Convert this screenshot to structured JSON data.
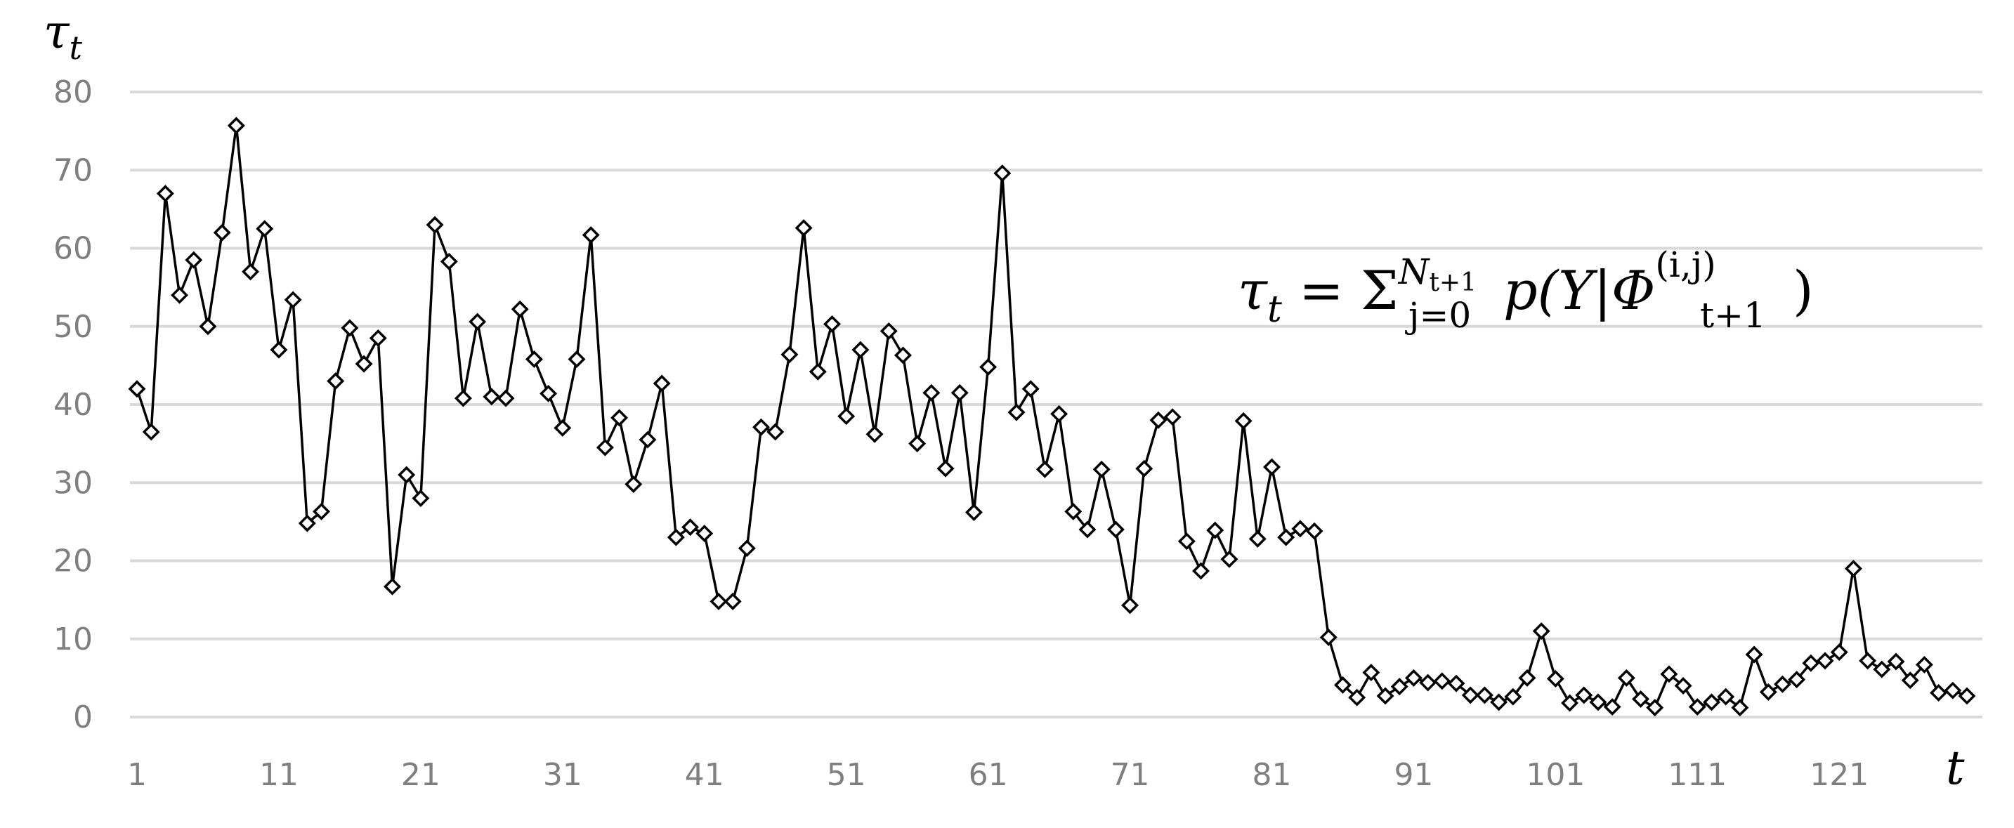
{
  "chart_data": {
    "type": "line",
    "ylabel": "τ",
    "ylabel_sub": "t",
    "xlabel": "t",
    "annotation": {
      "lhs": "τ",
      "lhs_sub": "t",
      "eq": " = Σ",
      "sum_sup": "N",
      "sum_sup_sub": "t+1",
      "sum_sub": "j=0",
      "body": "p(Y|Φ",
      "phi_sup": "(i,j)",
      "phi_sub": "t+1",
      "close": ")"
    },
    "ylim": [
      0,
      80
    ],
    "yticks": [
      0,
      10,
      20,
      30,
      40,
      50,
      60,
      70,
      80
    ],
    "xlim": [
      1,
      130
    ],
    "xticks": [
      1,
      11,
      21,
      31,
      41,
      51,
      61,
      71,
      81,
      91,
      101,
      111,
      121
    ],
    "grid": true,
    "marker": "diamond",
    "line_color": "#000000",
    "grid_color": "#d9d9d9",
    "tick_color": "#7f7f7f",
    "series": [
      {
        "values": [
          42,
          36.5,
          67,
          54,
          58.5,
          50,
          62,
          75.7,
          57,
          62.5,
          47,
          53.4,
          24.8,
          26.3,
          43,
          49.8,
          45.2,
          48.5,
          16.7,
          31,
          28,
          63,
          58.3,
          40.8,
          50.6,
          41,
          40.8,
          52.2,
          45.8,
          41.4,
          37,
          45.8,
          61.7,
          34.5,
          38.3,
          29.8,
          35.5,
          42.7,
          23,
          24.3,
          23.5,
          14.8,
          14.8,
          21.6,
          37.1,
          36.5,
          46.4,
          62.6,
          44.2,
          50.3,
          38.5,
          47,
          36.2,
          49.4,
          46.3,
          35,
          41.5,
          31.8,
          41.5,
          26.2,
          44.8,
          69.6,
          39,
          42,
          31.7,
          38.8,
          26.3,
          24,
          31.7,
          24,
          14.3,
          31.8,
          38,
          38.4,
          22.5,
          18.7,
          23.9,
          20.2,
          37.9,
          22.8,
          32,
          23,
          24.1,
          23.8,
          10.2,
          4.1,
          2.5,
          5.7,
          2.7,
          3.9,
          5,
          4.4,
          4.6,
          4.3,
          2.8,
          2.8,
          1.9,
          2.6,
          5,
          11,
          4.9,
          1.8,
          2.8,
          1.9,
          1.3,
          5,
          2.3,
          1.2,
          5.5,
          4,
          1.3,
          1.9,
          2.6,
          1.2,
          8,
          3.2,
          4.2,
          4.8,
          6.9,
          7.2,
          8.3,
          19,
          7.2,
          6.1,
          7.1,
          4.7,
          6.7,
          3.1,
          3.4,
          2.7
        ]
      }
    ]
  }
}
